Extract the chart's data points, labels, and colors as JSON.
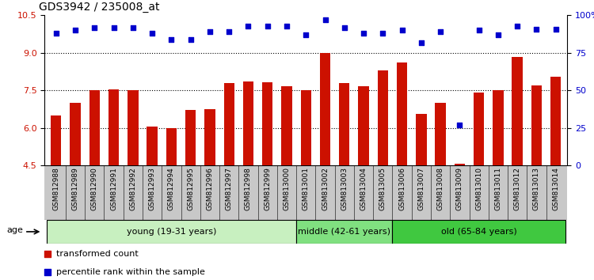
{
  "title": "GDS3942 / 235008_at",
  "samples": [
    "GSM812988",
    "GSM812989",
    "GSM812990",
    "GSM812991",
    "GSM812992",
    "GSM812993",
    "GSM812994",
    "GSM812995",
    "GSM812996",
    "GSM812997",
    "GSM812998",
    "GSM812999",
    "GSM813000",
    "GSM813001",
    "GSM813002",
    "GSM813003",
    "GSM813004",
    "GSM813005",
    "GSM813006",
    "GSM813007",
    "GSM813008",
    "GSM813009",
    "GSM813010",
    "GSM813011",
    "GSM813012",
    "GSM813013",
    "GSM813014"
  ],
  "red_bars": [
    6.5,
    7.0,
    7.5,
    7.55,
    7.5,
    6.05,
    5.98,
    6.7,
    6.75,
    7.8,
    7.85,
    7.82,
    7.65,
    7.52,
    9.0,
    7.8,
    7.65,
    8.3,
    8.62,
    6.55,
    7.0,
    4.55,
    7.4,
    7.5,
    8.85,
    7.7,
    8.05
  ],
  "blue_dots": [
    88,
    90,
    92,
    92,
    92,
    88,
    84,
    84,
    89,
    89,
    93,
    93,
    93,
    87,
    97,
    92,
    88,
    88,
    90,
    82,
    89,
    27,
    90,
    87,
    93,
    91,
    91
  ],
  "ylim_left": [
    4.5,
    10.5
  ],
  "ylim_right": [
    0,
    100
  ],
  "yticks_left": [
    4.5,
    6.0,
    7.5,
    9.0,
    10.5
  ],
  "yticks_right": [
    0,
    25,
    50,
    75,
    100
  ],
  "ytick_labels_right": [
    "0",
    "25",
    "50",
    "75",
    "100%"
  ],
  "hlines": [
    6.0,
    7.5,
    9.0
  ],
  "groups": [
    {
      "label": "young (19-31 years)",
      "start": 0,
      "end": 13,
      "color": "#c8f0c0"
    },
    {
      "label": "middle (42-61 years)",
      "start": 13,
      "end": 18,
      "color": "#80e080"
    },
    {
      "label": "old (65-84 years)",
      "start": 18,
      "end": 27,
      "color": "#40c840"
    }
  ],
  "bar_color": "#cc1100",
  "dot_color": "#0000cc",
  "bar_width": 0.55,
  "legend_red": "transformed count",
  "legend_blue": "percentile rank within the sample",
  "tick_fontsize": 8,
  "title_fontsize": 10
}
